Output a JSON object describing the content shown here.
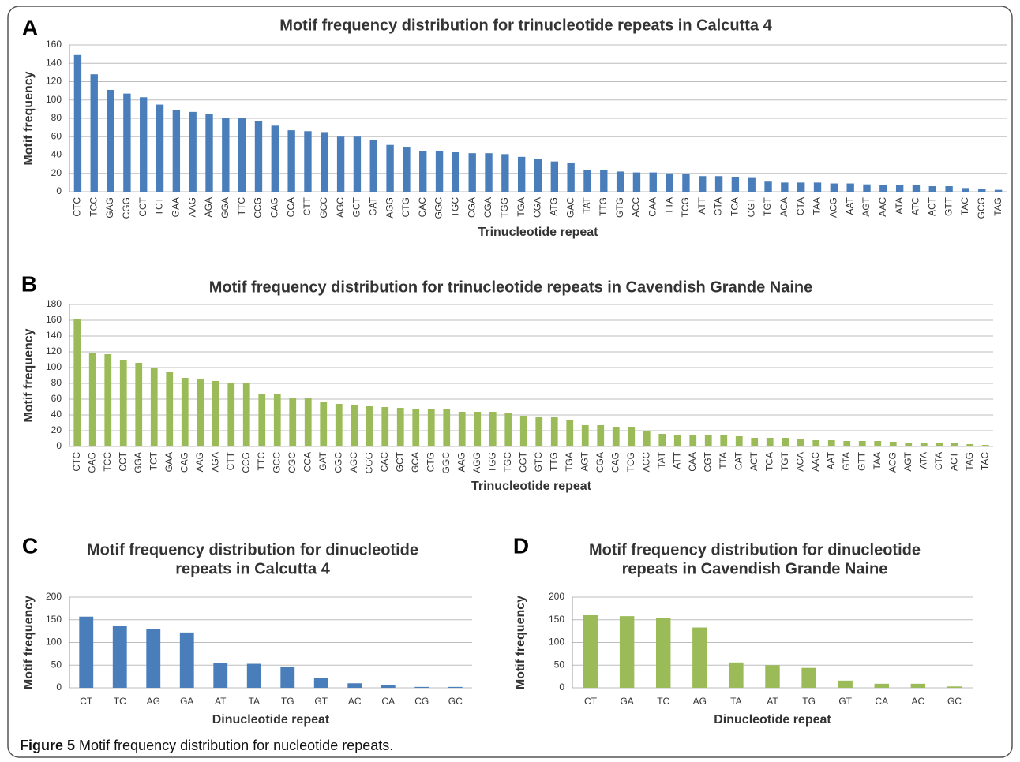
{
  "chart_data": [
    {
      "type": "bar",
      "panel": "A",
      "title": "Motif frequency distribution for trinucleotide repeats in Calcutta 4",
      "xlabel": "Trinucleotide repeat",
      "ylabel": "Motif frequency",
      "color": "#4a7ebb",
      "grid": true,
      "ylim": [
        0,
        160
      ],
      "yticks": [
        0,
        20,
        40,
        60,
        80,
        100,
        120,
        140,
        160
      ],
      "categories": [
        "CTC",
        "TCC",
        "GAG",
        "CGG",
        "CCT",
        "TCT",
        "GAA",
        "AAG",
        "AGA",
        "GGA",
        "TTC",
        "CCG",
        "CAG",
        "CCA",
        "CTT",
        "GCC",
        "AGC",
        "GCT",
        "GAT",
        "AGG",
        "CTG",
        "CAC",
        "GGC",
        "TGC",
        "CGA",
        "CGA",
        "TGG",
        "TGA",
        "CGA",
        "ATG",
        "GAC",
        "TAT",
        "TTG",
        "GTG",
        "ACC",
        "CAA",
        "TTA",
        "TCG",
        "ATT",
        "GTA",
        "TCA",
        "CGT",
        "TGT",
        "ACA",
        "CTA",
        "TAA",
        "ACG",
        "AAT",
        "AGT",
        "AAC",
        "ATA",
        "ATC",
        "ACT",
        "GTT",
        "TAC",
        "GCG",
        "TAG"
      ],
      "values": [
        149,
        128,
        111,
        107,
        103,
        95,
        89,
        87,
        85,
        80,
        80,
        77,
        72,
        67,
        66,
        65,
        60,
        60,
        56,
        51,
        49,
        44,
        44,
        43,
        42,
        42,
        41,
        38,
        36,
        33,
        31,
        24,
        24,
        22,
        21,
        21,
        20,
        19,
        17,
        17,
        16,
        15,
        11,
        10,
        10,
        10,
        9,
        9,
        8,
        7,
        7,
        7,
        6,
        6,
        4,
        3,
        2
      ]
    },
    {
      "type": "bar",
      "panel": "B",
      "title": "Motif frequency distribution for trinucleotide repeats in Cavendish Grande Naine",
      "xlabel": "Trinucleotide repeat",
      "ylabel": "Motif frequency",
      "color": "#9bbb59",
      "grid": true,
      "ylim": [
        0,
        180
      ],
      "yticks": [
        0,
        20,
        40,
        60,
        80,
        100,
        120,
        140,
        160,
        180
      ],
      "categories": [
        "CTC",
        "GAG",
        "TCC",
        "CCT",
        "GGA",
        "TCT",
        "GAA",
        "CAG",
        "AAG",
        "AGA",
        "CTT",
        "CCG",
        "TTC",
        "GCC",
        "CGC",
        "CCA",
        "GAT",
        "CGC",
        "AGC",
        "CGG",
        "CAC",
        "GCT",
        "GCA",
        "CTG",
        "GGC",
        "AAG",
        "AGG",
        "TGG",
        "TGC",
        "GGT",
        "GTC",
        "TTG",
        "TGA",
        "AGT",
        "CGA",
        "CAG",
        "TCG",
        "ACC",
        "TAT",
        "ATT",
        "CAA",
        "CGT",
        "TTA",
        "CAT",
        "ACT",
        "TCA",
        "TGT",
        "ACA",
        "AAC",
        "AAT",
        "GTA",
        "GTT",
        "TAA",
        "ACG",
        "AGT",
        "ATA",
        "CTA",
        "ACT",
        "TAG",
        "TAC"
      ],
      "values": [
        162,
        118,
        117,
        109,
        106,
        100,
        95,
        87,
        85,
        83,
        81,
        80,
        67,
        66,
        62,
        61,
        56,
        54,
        53,
        51,
        50,
        49,
        48,
        47,
        47,
        44,
        44,
        44,
        42,
        39,
        37,
        37,
        34,
        27,
        27,
        25,
        25,
        20,
        16,
        14,
        14,
        14,
        14,
        13,
        11,
        11,
        11,
        9,
        8,
        8,
        7,
        7,
        7,
        6,
        5,
        5,
        5,
        4,
        3,
        2
      ]
    },
    {
      "type": "bar",
      "panel": "C",
      "title": [
        "Motif frequency distribution for dinucleotide",
        "repeats in Calcutta 4"
      ],
      "xlabel": "Dinucleotide repeat",
      "ylabel": "Motif frequency",
      "color": "#4a7ebb",
      "grid": true,
      "ylim": [
        0,
        200
      ],
      "yticks": [
        0,
        50,
        100,
        150,
        200
      ],
      "categories": [
        "CT",
        "TC",
        "AG",
        "GA",
        "AT",
        "TA",
        "TG",
        "GT",
        "AC",
        "CA",
        "CG",
        "GC"
      ],
      "values": [
        157,
        136,
        130,
        122,
        55,
        53,
        47,
        22,
        10,
        6,
        2,
        2
      ]
    },
    {
      "type": "bar",
      "panel": "D",
      "title": [
        "Motif frequency distribution for dinucleotide",
        "repeats in Cavendish Grande Naine"
      ],
      "xlabel": "Dinucleotide repeat",
      "ylabel": "Motif frequency",
      "color": "#9bbb59",
      "grid": true,
      "ylim": [
        0,
        200
      ],
      "yticks": [
        0,
        50,
        100,
        150,
        200
      ],
      "categories": [
        "CT",
        "GA",
        "TC",
        "AG",
        "TA",
        "AT",
        "TG",
        "GT",
        "CA",
        "AC",
        "GC"
      ],
      "values": [
        160,
        158,
        154,
        133,
        56,
        50,
        44,
        16,
        9,
        9,
        3
      ]
    }
  ],
  "caption": {
    "label": "Figure 5",
    "text": "Motif frequency distribution for nucleotide repeats."
  }
}
